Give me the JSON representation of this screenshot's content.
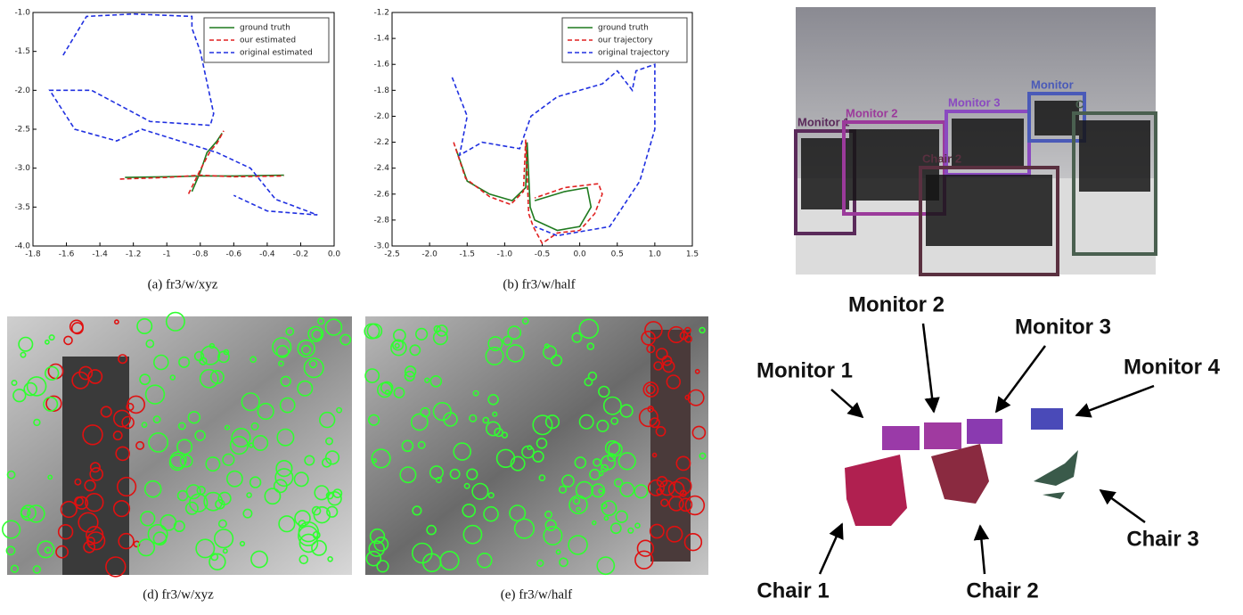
{
  "chart_data": [
    {
      "type": "line",
      "caption": "(a)  fr3/w/xyz",
      "legend": "upper right",
      "xlim": [
        -1.8,
        0.0
      ],
      "xticks": [
        -1.8,
        -1.6,
        -1.4,
        -1.2,
        -1.0,
        -0.8,
        -0.6,
        -0.4,
        -0.2,
        {
          "value": 0,
          "label": "0.0"
        }
      ],
      "ylim": [
        -4.0,
        -1.0
      ],
      "yticks": [
        {
          "value": -4,
          "label": "-4.0"
        },
        -3.5,
        {
          "value": -3,
          "label": "-3.0"
        },
        -2.5,
        {
          "value": -2,
          "label": "-2.0"
        },
        -1.5,
        {
          "value": -1,
          "label": "-1.0"
        }
      ],
      "series": [
        {
          "name": "ground truth",
          "color": "#1f7a1f",
          "style": "solid",
          "x": [
            -1.25,
            -1.0,
            -0.8,
            -0.6,
            -0.3,
            null,
            -0.85,
            -0.8,
            -0.76,
            -0.7,
            -0.67
          ],
          "values": [
            -3.12,
            -3.11,
            -3.1,
            -3.1,
            -3.09,
            null,
            -3.3,
            -3.05,
            -2.8,
            -2.65,
            -2.55
          ]
        },
        {
          "name": "our estimated",
          "color": "#e02020",
          "style": "dashed",
          "x": [
            -1.28,
            -1.0,
            -0.8,
            -0.6,
            -0.3,
            null,
            -0.87,
            -0.8,
            -0.74,
            -0.7,
            -0.66
          ],
          "values": [
            -3.14,
            -3.12,
            -3.09,
            -3.11,
            -3.1,
            null,
            -3.33,
            -3.02,
            -2.78,
            -2.68,
            -2.52
          ]
        },
        {
          "name": "original estimated",
          "color": "#2030e0",
          "style": "dashed",
          "x": [
            -1.62,
            -1.55,
            -1.48,
            -1.2,
            -0.85,
            -0.85,
            -0.8,
            -0.75,
            -0.72,
            -0.74,
            -1.1,
            -1.45,
            -1.7,
            -1.55,
            -1.3,
            -1.15,
            -1.0,
            -0.7,
            -0.5,
            -0.35,
            -0.1,
            -0.4,
            -0.6
          ],
          "values": [
            -1.55,
            -1.3,
            -1.05,
            -1.02,
            -1.05,
            -1.2,
            -1.5,
            -2.0,
            -2.3,
            -2.45,
            -2.4,
            -2.0,
            -2.0,
            -2.5,
            -2.65,
            -2.5,
            -2.6,
            -2.8,
            -3.0,
            -3.4,
            -3.6,
            -3.55,
            -3.35
          ]
        }
      ]
    },
    {
      "type": "line",
      "caption": "(b)  fr3/w/half",
      "legend": "upper right",
      "xlim": [
        -2.5,
        1.5
      ],
      "xticks": [
        -2.5,
        {
          "value": -2,
          "label": "-2.0"
        },
        -1.5,
        {
          "value": -1,
          "label": "-1.0"
        },
        -0.5,
        {
          "value": 0,
          "label": "0.0"
        },
        0.5,
        {
          "value": 1,
          "label": "1.0"
        },
        1.5
      ],
      "ylim": [
        -3.0,
        -1.2
      ],
      "yticks": [
        {
          "value": -3,
          "label": "-3.0"
        },
        -2.8,
        -2.6,
        -2.4,
        -2.2,
        {
          "value": -2,
          "label": "-2.0"
        },
        -1.8,
        -1.6,
        -1.4,
        -1.2
      ],
      "series": [
        {
          "name": "ground truth",
          "color": "#1f7a1f",
          "style": "solid",
          "x": [
            -1.65,
            -1.5,
            -1.2,
            -0.9,
            -0.72,
            -0.7,
            -0.66,
            -0.6,
            -0.3,
            0.0,
            0.15,
            0.1,
            -0.2,
            -0.6
          ],
          "values": [
            -2.25,
            -2.5,
            -2.6,
            -2.65,
            -2.55,
            -2.2,
            -2.7,
            -2.8,
            -2.88,
            -2.85,
            -2.7,
            -2.55,
            -2.58,
            -2.65
          ]
        },
        {
          "name": "our trajectory",
          "color": "#e02020",
          "style": "dashed",
          "x": [
            -1.68,
            -1.52,
            -1.2,
            -0.92,
            -0.75,
            -0.72,
            -0.68,
            -0.62,
            -0.5,
            -0.3,
            0.0,
            0.2,
            0.3,
            0.25,
            -0.2,
            -0.6
          ],
          "values": [
            -2.2,
            -2.48,
            -2.62,
            -2.68,
            -2.58,
            -2.18,
            -2.75,
            -2.85,
            -2.98,
            -2.9,
            -2.88,
            -2.75,
            -2.6,
            -2.52,
            -2.55,
            -2.63
          ]
        },
        {
          "name": "original trajectory",
          "color": "#2030e0",
          "style": "dashed",
          "x": [
            -1.7,
            -1.5,
            -1.6,
            -1.3,
            -0.8,
            -0.65,
            -0.3,
            0.3,
            0.5,
            0.7,
            0.75,
            1.0,
            1.0,
            0.8,
            0.4,
            -0.3,
            -0.6
          ],
          "values": [
            -1.7,
            -2.0,
            -2.3,
            -2.2,
            -2.25,
            -2.0,
            -1.85,
            -1.75,
            -1.65,
            -1.8,
            -1.65,
            -1.6,
            -2.1,
            -2.5,
            -2.85,
            -2.92,
            -2.85
          ]
        }
      ]
    }
  ],
  "photos": [
    {
      "caption": "(d)  fr3/w/xyz"
    },
    {
      "caption": "(e)  fr3/w/half"
    }
  ],
  "detection": {
    "labels": [
      "Monitor 1",
      "Monitor 2",
      "Monitor 3",
      "Monitor",
      "Chair 2",
      "C"
    ]
  },
  "point_cloud": {
    "labels": [
      "Monitor 1",
      "Monitor 2",
      "Monitor 3",
      "Monitor 4",
      "Chair 1",
      "Chair 2",
      "Chair 3"
    ]
  }
}
